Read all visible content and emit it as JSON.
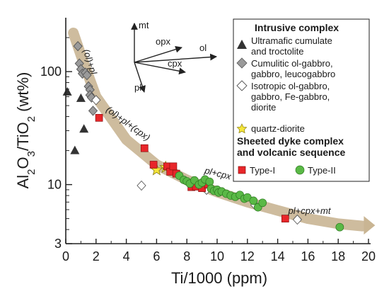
{
  "chart_data": {
    "type": "scatter",
    "xlabel": "Ti/1000 (ppm)",
    "ylabel": "Al2O3/TiO2 (wt%)",
    "xlim": [
      0,
      20
    ],
    "ylim": [
      3,
      300
    ],
    "y_scale": "log",
    "x_ticks": [
      0,
      2,
      4,
      6,
      8,
      10,
      12,
      14,
      16,
      18,
      20
    ],
    "y_ticks": [
      3,
      10,
      100
    ],
    "y_tick_labels": [
      "3",
      "10",
      "100"
    ],
    "grid": false,
    "legend_position": "top-right",
    "legend": {
      "group1_title": "Intrusive complex",
      "group2_title": "Sheeted dyke complex and volcanic sequence",
      "group2_title_lines": [
        "Sheeted dyke complex",
        "and volcanic sequence"
      ],
      "entries": [
        {
          "key": "ultramafic",
          "label": "Ultramafic cumulate and troctolite",
          "lines": [
            "Ultramafic cumulate",
            "and troctolite"
          ]
        },
        {
          "key": "cumulitic",
          "label": "Cumulitic ol-gabbro, gabbro, leucogabbro",
          "lines": [
            "Cumulitic ol-gabbro,",
            "gabbro, leucogabbro"
          ]
        },
        {
          "key": "isotropic",
          "label": "Isotropic ol-gabbro, gabbro, Fe-gabbro, diorite",
          "lines": [
            "Isotropic ol-gabbro,",
            "gabbro, Fe-gabbro,",
            "diorite"
          ]
        },
        {
          "key": "quartz_diorite",
          "label": "quartz-diorite",
          "lines": [
            "quartz-diorite"
          ]
        },
        {
          "key": "type1",
          "label": "Type-I",
          "lines": [
            "Type-I"
          ]
        },
        {
          "key": "type2",
          "label": "Type-II",
          "lines": [
            "Type-II"
          ]
        }
      ]
    },
    "colors": {
      "ultramafic": "#333333",
      "cumulitic": "#9a9a9a",
      "isotropic": "#ffffff",
      "quartz_diorite": "#f5e63a",
      "type1": "#e8262a",
      "type2": "#5ab946",
      "trend": "#c9b593"
    },
    "series": [
      {
        "key": "ultramafic",
        "marker": "triangle",
        "points": [
          [
            0.1,
            66
          ],
          [
            0.6,
            20
          ],
          [
            1.0,
            58
          ],
          [
            1.2,
            31
          ]
        ]
      },
      {
        "key": "cumulitic",
        "marker": "diamond",
        "points": [
          [
            0.8,
            168
          ],
          [
            0.9,
            118
          ],
          [
            1.0,
            105
          ],
          [
            1.1,
            96
          ],
          [
            1.3,
            98
          ],
          [
            1.4,
            93
          ],
          [
            1.5,
            74
          ],
          [
            1.6,
            69
          ],
          [
            1.6,
            62
          ],
          [
            1.7,
            59
          ],
          [
            1.8,
            45
          ]
        ]
      },
      {
        "key": "isotropic",
        "marker": "diamond",
        "points": [
          [
            2.0,
            56
          ],
          [
            5.0,
            9.8
          ],
          [
            9.3,
            9.0
          ],
          [
            12.5,
            6.6
          ],
          [
            15.3,
            4.9
          ]
        ]
      },
      {
        "key": "quartz_diorite",
        "marker": "star",
        "points": [
          [
            6.0,
            13.5
          ],
          [
            6.6,
            14.2
          ]
        ]
      },
      {
        "key": "type1",
        "marker": "square",
        "points": [
          [
            2.2,
            39
          ],
          [
            5.2,
            21
          ],
          [
            5.8,
            15
          ],
          [
            6.7,
            14.5
          ],
          [
            6.9,
            13
          ],
          [
            7.1,
            14.5
          ],
          [
            7.3,
            12.5
          ],
          [
            8.3,
            9.5
          ],
          [
            8.6,
            9.6
          ],
          [
            9.0,
            9.3
          ],
          [
            9.4,
            10
          ],
          [
            14.5,
            5.0
          ]
        ]
      },
      {
        "key": "type2",
        "marker": "circle",
        "points": [
          [
            7.5,
            12
          ],
          [
            7.8,
            11
          ],
          [
            8.0,
            10.7
          ],
          [
            8.2,
            10.2
          ],
          [
            8.5,
            10.9
          ],
          [
            8.8,
            10.0
          ],
          [
            9.0,
            10.4
          ],
          [
            9.2,
            11.1
          ],
          [
            9.5,
            10.6
          ],
          [
            9.6,
            9.2
          ],
          [
            9.8,
            8.8
          ],
          [
            10.0,
            9.0
          ],
          [
            10.1,
            8.5
          ],
          [
            10.3,
            8.7
          ],
          [
            10.6,
            8.3
          ],
          [
            10.9,
            8.0
          ],
          [
            11.2,
            7.8
          ],
          [
            11.5,
            8.1
          ],
          [
            11.8,
            7.5
          ],
          [
            12.0,
            7.7
          ],
          [
            12.4,
            7.2
          ],
          [
            12.7,
            6.3
          ],
          [
            13.0,
            6.9
          ],
          [
            18.1,
            4.2
          ]
        ]
      }
    ],
    "trend_path": [
      [
        0.5,
        220
      ],
      [
        1.0,
        140
      ],
      [
        2.0,
        60
      ],
      [
        4.0,
        25
      ],
      [
        6.0,
        15
      ],
      [
        8.0,
        11
      ],
      [
        10.0,
        8.6
      ],
      [
        12.0,
        7.0
      ],
      [
        14.0,
        5.9
      ],
      [
        16.0,
        5.0
      ],
      [
        18.0,
        4.5
      ],
      [
        19.6,
        4.3
      ]
    ],
    "annotations": [
      {
        "text": "(ol)+pl",
        "x": 1.4,
        "y": 120,
        "rotate": 72
      },
      {
        "text": "(ol)+pl+(cpx)",
        "x": 4.0,
        "y": 33,
        "rotate": 36
      },
      {
        "text": "pl+cpx",
        "x": 10.0,
        "y": 11.8,
        "rotate": 14
      },
      {
        "text": "pl+cpx+mt",
        "x": 16.1,
        "y": 5.5,
        "rotate": 0
      }
    ],
    "vector_labels": {
      "mt": "mt",
      "opx": "opx",
      "ol": "ol",
      "cpx": "cpx",
      "pl": "pl"
    }
  }
}
